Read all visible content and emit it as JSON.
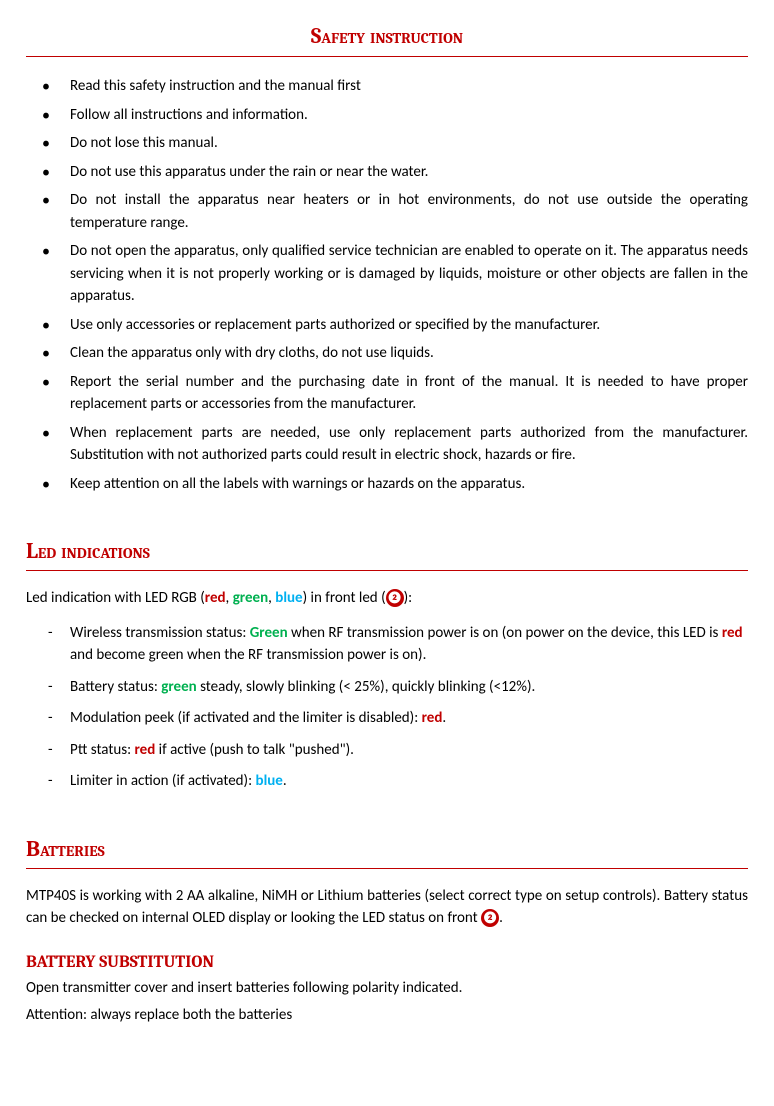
{
  "colors": {
    "accent": "#c00000",
    "green": "#00b050",
    "blue": "#00b0f0",
    "text": "#000000",
    "background": "#ffffff"
  },
  "typography": {
    "body_font": "Calibri",
    "heading_font": "Cambria",
    "body_fontsize": 15,
    "heading_fontsize": 22,
    "subheading_fontsize": 17
  },
  "safety": {
    "title": "Safety instruction",
    "items": [
      "Read this safety instruction and the manual first",
      "Follow all instructions and information.",
      "Do not lose this manual.",
      "Do not use this apparatus under the rain or near the water.",
      "Do not install the apparatus near heaters or in hot environments, do not use outside the operating temperature range.",
      "Do not open the apparatus, only qualified service technician are enabled to operate on it. The apparatus needs servicing when it is not properly working or is damaged by liquids, moisture or other objects are fallen in the apparatus.",
      "Use only accessories or replacement parts authorized or specified by the manufacturer.",
      "Clean the apparatus only with dry cloths, do not use liquids.",
      "Report the serial number and the purchasing date in front of the manual. It is needed to have proper replacement parts or accessories from the manufacturer.",
      "When replacement parts are needed, use only replacement parts authorized from the manufacturer. Substitution with not authorized parts could result in electric shock, hazards or fire.",
      "Keep attention on all the labels with warnings or hazards on the apparatus."
    ]
  },
  "led": {
    "title": "Led indications",
    "intro_prefix": "Led indication with LED RGB (",
    "intro_red": "red",
    "intro_sep1": ", ",
    "intro_green": "green",
    "intro_sep2": ", ",
    "intro_blue": "blue",
    "intro_suffix1": ") in front led (",
    "badge": "❷",
    "intro_suffix2": "):",
    "items": {
      "wireless_prefix": "Wireless transmission status: ",
      "wireless_green": "Green",
      "wireless_mid": " when RF transmission power is on (on power on the device, this LED is ",
      "wireless_red": "red",
      "wireless_suffix": " and become green when the RF transmission power is on).",
      "battery_prefix": "Battery status: ",
      "battery_green": "green",
      "battery_suffix": " steady, slowly blinking (< 25%), quickly blinking (<12%).",
      "modulation_prefix": "Modulation peek (if activated and the limiter is disabled): ",
      "modulation_red": "red",
      "modulation_suffix": ".",
      "ptt_prefix": "Ptt status: ",
      "ptt_red": "red",
      "ptt_suffix": " if active (push to talk \"pushed\").",
      "limiter_prefix": "Limiter in action (if activated): ",
      "limiter_blue": "blue",
      "limiter_suffix": "."
    }
  },
  "batteries": {
    "title": "Batteries",
    "para_prefix": "MTP40S is working with 2 AA alkaline, NiMH or Lithium batteries (select correct type on setup controls). Battery status can be checked on internal OLED display or looking the LED status on front ",
    "badge": "❷",
    "para_suffix": ".",
    "sub_title": "BATTERY SUBSTITUTION",
    "line1": "Open transmitter cover and insert batteries following polarity indicated.",
    "line2": "Attention: always replace both the batteries"
  }
}
